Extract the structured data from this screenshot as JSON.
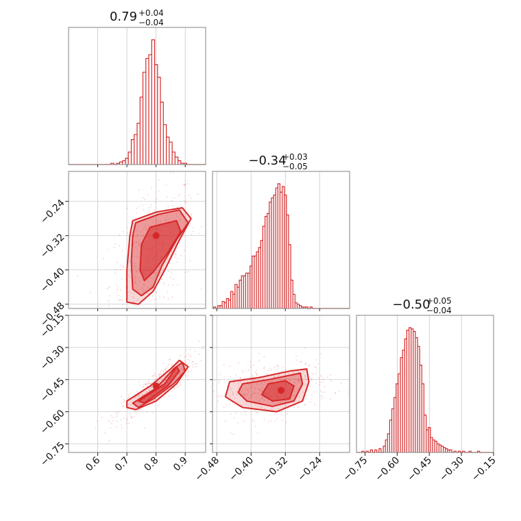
{
  "chart_data": {
    "type": "corner",
    "color": "#d62728",
    "parameters": [
      {
        "range": [
          0.5,
          0.97
        ],
        "ticks": [
          0.6,
          0.7,
          0.8,
          0.9
        ],
        "tick_labels": [
          "0.6",
          "0.7",
          "0.8",
          "0.9"
        ],
        "title_value": "0.79",
        "title_plus": "+0.04",
        "title_minus": "−0.04",
        "hist": {
          "centers": [
            0.65,
            0.67,
            0.68,
            0.69,
            0.7,
            0.71,
            0.72,
            0.73,
            0.74,
            0.75,
            0.76,
            0.77,
            0.78,
            0.79,
            0.8,
            0.81,
            0.82,
            0.83,
            0.84,
            0.85,
            0.86,
            0.87,
            0.88,
            0.89,
            0.9,
            0.92
          ],
          "counts": [
            1,
            1,
            2,
            3,
            5,
            10,
            20,
            24,
            33,
            54,
            74,
            85,
            88,
            100,
            80,
            70,
            50,
            32,
            22,
            18,
            10,
            6,
            3,
            1,
            1,
            0
          ]
        }
      },
      {
        "range": [
          -0.49,
          -0.17
        ],
        "ticks": [
          -0.48,
          -0.4,
          -0.32,
          -0.24
        ],
        "tick_labels": [
          "−0.48",
          "−0.40",
          "−0.32",
          "−0.24"
        ],
        "title_value": "−0.34",
        "title_plus": "+0.03",
        "title_minus": "−0.05",
        "hist": {
          "centers": [
            -0.485,
            -0.475,
            -0.47,
            -0.465,
            -0.46,
            -0.455,
            -0.45,
            -0.445,
            -0.44,
            -0.435,
            -0.43,
            -0.425,
            -0.42,
            -0.415,
            -0.41,
            -0.405,
            -0.4,
            -0.395,
            -0.39,
            -0.385,
            -0.38,
            -0.375,
            -0.37,
            -0.365,
            -0.36,
            -0.355,
            -0.35,
            -0.345,
            -0.34,
            -0.335,
            -0.33,
            -0.325,
            -0.32,
            -0.315,
            -0.31,
            -0.305,
            -0.3,
            -0.295,
            -0.29,
            -0.285,
            -0.28,
            -0.275,
            -0.27,
            -0.26,
            -0.25
          ],
          "counts": [
            1,
            2,
            2,
            5,
            4,
            7,
            6,
            12,
            10,
            17,
            15,
            20,
            23,
            23,
            25,
            25,
            30,
            37,
            37,
            40,
            43,
            48,
            58,
            65,
            67,
            75,
            78,
            80,
            85,
            88,
            82,
            86,
            80,
            66,
            45,
            20,
            10,
            4,
            3,
            2,
            1,
            1,
            1,
            1,
            0
          ]
        }
      },
      {
        "range": [
          -0.79,
          -0.15
        ],
        "ticks": [
          -0.75,
          -0.6,
          -0.45,
          -0.3,
          -0.15
        ],
        "tick_labels": [
          "−0.75",
          "−0.60",
          "−0.45",
          "−0.30",
          "−0.15"
        ],
        "title_value": "−0.50",
        "title_plus": "+0.05",
        "title_minus": "−0.04",
        "hist": {
          "centers": [
            -0.76,
            -0.74,
            -0.72,
            -0.7,
            -0.68,
            -0.66,
            -0.65,
            -0.64,
            -0.63,
            -0.62,
            -0.61,
            -0.6,
            -0.59,
            -0.58,
            -0.57,
            -0.56,
            -0.55,
            -0.54,
            -0.53,
            -0.52,
            -0.51,
            -0.5,
            -0.49,
            -0.48,
            -0.47,
            -0.46,
            -0.45,
            -0.44,
            -0.43,
            -0.42,
            -0.41,
            -0.4,
            -0.39,
            -0.38,
            -0.37,
            -0.36,
            -0.35,
            -0.33,
            -0.31,
            -0.29,
            -0.26,
            -0.22,
            -0.18
          ],
          "counts": [
            1,
            1,
            2,
            2,
            3,
            5,
            10,
            15,
            26,
            35,
            44,
            55,
            63,
            76,
            82,
            91,
            98,
            100,
            99,
            97,
            92,
            85,
            70,
            55,
            30,
            18,
            20,
            12,
            10,
            9,
            7,
            6,
            5,
            4,
            3,
            2,
            2,
            1,
            1,
            1,
            1,
            1,
            0
          ]
        }
      }
    ],
    "pairs": [
      {
        "x_param": 0,
        "y_param": 1,
        "levels": [
          [
            [
              0.78,
              -0.3
            ],
            [
              0.87,
              -0.285
            ],
            [
              0.885,
              -0.31
            ],
            [
              0.84,
              -0.36
            ],
            [
              0.79,
              -0.405
            ],
            [
              0.76,
              -0.425
            ],
            [
              0.745,
              -0.4
            ],
            [
              0.75,
              -0.34
            ]
          ],
          [
            [
              0.73,
              -0.29
            ],
            [
              0.81,
              -0.27
            ],
            [
              0.88,
              -0.26
            ],
            [
              0.91,
              -0.29
            ],
            [
              0.87,
              -0.33
            ],
            [
              0.82,
              -0.39
            ],
            [
              0.79,
              -0.44
            ],
            [
              0.75,
              -0.46
            ],
            [
              0.72,
              -0.445
            ],
            [
              0.715,
              -0.38
            ],
            [
              0.72,
              -0.32
            ]
          ],
          [
            [
              0.72,
              -0.285
            ],
            [
              0.8,
              -0.265
            ],
            [
              0.89,
              -0.255
            ],
            [
              0.92,
              -0.28
            ],
            [
              0.88,
              -0.33
            ],
            [
              0.83,
              -0.4
            ],
            [
              0.79,
              -0.45
            ],
            [
              0.74,
              -0.48
            ],
            [
              0.7,
              -0.475
            ],
            [
              0.7,
              -0.4
            ],
            [
              0.71,
              -0.32
            ]
          ]
        ],
        "peak": [
          0.8,
          -0.32
        ]
      },
      {
        "x_param": 0,
        "y_param": 2,
        "levels": [
          [
            [
              0.74,
              -0.55
            ],
            [
              0.83,
              -0.47
            ],
            [
              0.87,
              -0.39
            ],
            [
              0.88,
              -0.41
            ],
            [
              0.84,
              -0.48
            ],
            [
              0.76,
              -0.56
            ]
          ],
          [
            [
              0.72,
              -0.56
            ],
            [
              0.8,
              -0.49
            ],
            [
              0.86,
              -0.4
            ],
            [
              0.89,
              -0.37
            ],
            [
              0.9,
              -0.41
            ],
            [
              0.86,
              -0.47
            ],
            [
              0.79,
              -0.54
            ],
            [
              0.74,
              -0.58
            ]
          ],
          [
            [
              0.7,
              -0.55
            ],
            [
              0.78,
              -0.48
            ],
            [
              0.85,
              -0.4
            ],
            [
              0.88,
              -0.36
            ],
            [
              0.91,
              -0.39
            ],
            [
              0.87,
              -0.47
            ],
            [
              0.8,
              -0.55
            ],
            [
              0.73,
              -0.59
            ],
            [
              0.7,
              -0.58
            ]
          ]
        ],
        "peak": [
          0.8,
          -0.48
        ]
      },
      {
        "x_param": 1,
        "y_param": 2,
        "levels": [
          [
            [
              -0.36,
              -0.47
            ],
            [
              -0.32,
              -0.455
            ],
            [
              -0.3,
              -0.48
            ],
            [
              -0.31,
              -0.54
            ],
            [
              -0.35,
              -0.55
            ],
            [
              -0.375,
              -0.52
            ]
          ],
          [
            [
              -0.42,
              -0.47
            ],
            [
              -0.36,
              -0.45
            ],
            [
              -0.31,
              -0.43
            ],
            [
              -0.285,
              -0.42
            ],
            [
              -0.28,
              -0.47
            ],
            [
              -0.3,
              -0.55
            ],
            [
              -0.35,
              -0.575
            ],
            [
              -0.41,
              -0.55
            ],
            [
              -0.43,
              -0.51
            ]
          ],
          [
            [
              -0.45,
              -0.46
            ],
            [
              -0.38,
              -0.44
            ],
            [
              -0.31,
              -0.41
            ],
            [
              -0.27,
              -0.4
            ],
            [
              -0.265,
              -0.46
            ],
            [
              -0.28,
              -0.55
            ],
            [
              -0.34,
              -0.6
            ],
            [
              -0.42,
              -0.58
            ],
            [
              -0.46,
              -0.53
            ]
          ]
        ],
        "peak": [
          -0.33,
          -0.5
        ]
      }
    ]
  }
}
